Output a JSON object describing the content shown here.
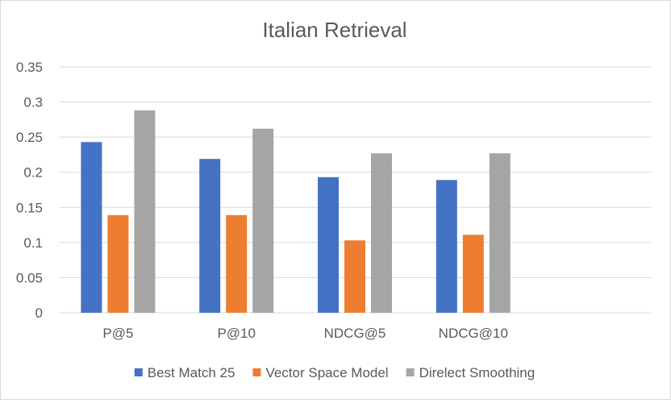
{
  "chart_data": {
    "type": "bar",
    "title": "Italian Retrieval",
    "xlabel": "",
    "ylabel": "",
    "categories": [
      "P@5",
      "P@10",
      "NDCG@5",
      "NDCG@10",
      ""
    ],
    "series": [
      {
        "name": "Best Match 25",
        "color": "#4472c4",
        "values": [
          0.243,
          0.219,
          0.193,
          0.189,
          null
        ]
      },
      {
        "name": "Vector Space Model",
        "color": "#ed7d31",
        "values": [
          0.139,
          0.139,
          0.103,
          0.111,
          null
        ]
      },
      {
        "name": "Direlect Smoothing",
        "color": "#a5a5a5",
        "values": [
          0.288,
          0.262,
          0.227,
          0.227,
          null
        ]
      }
    ],
    "ylim": [
      0,
      0.35
    ],
    "yticks": [
      "0",
      "0.05",
      "0.1",
      "0.15",
      "0.2",
      "0.25",
      "0.3",
      "0.35"
    ],
    "grid": true,
    "legend_position": "bottom"
  }
}
